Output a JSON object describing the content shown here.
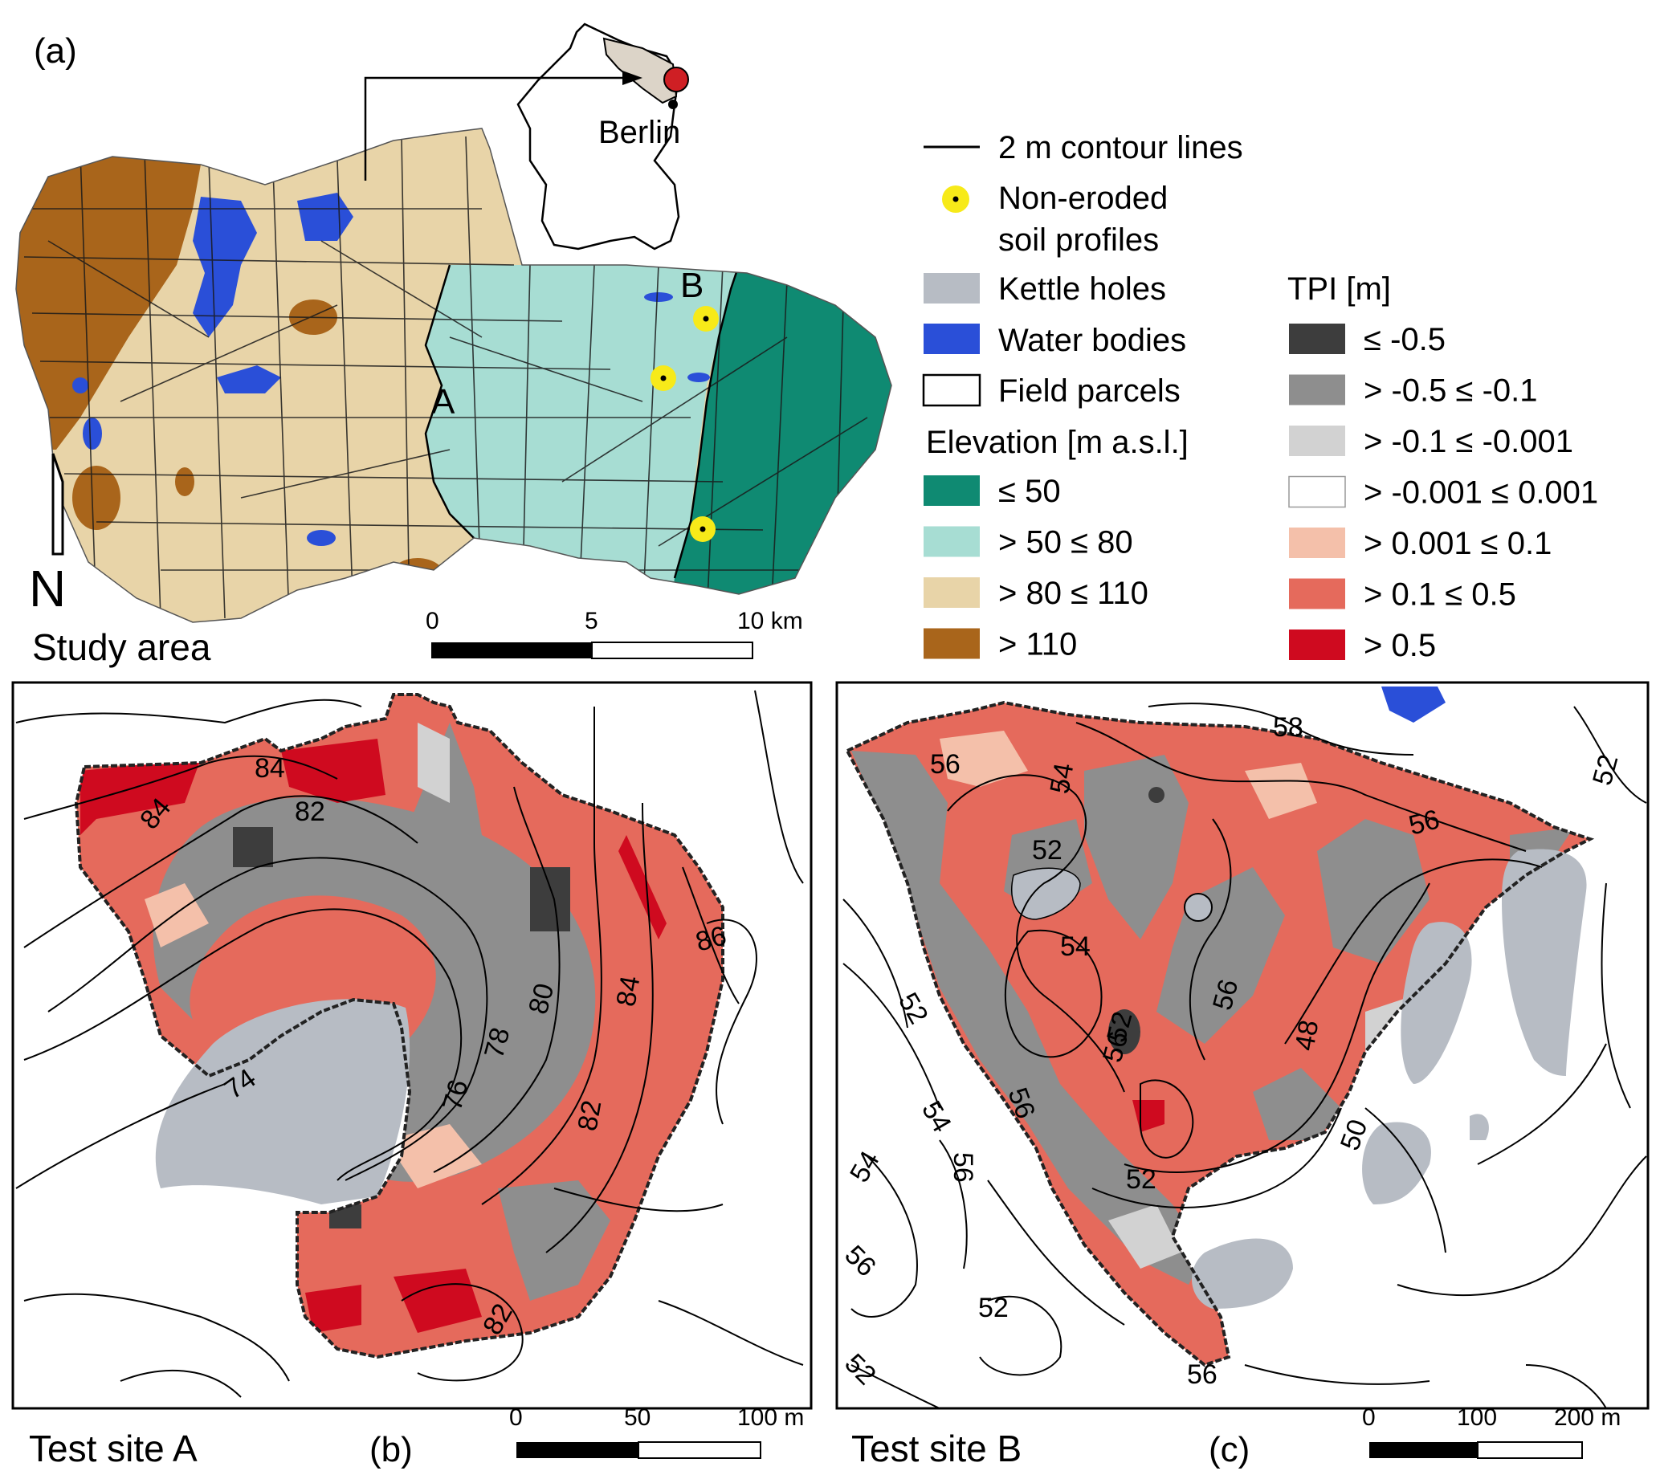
{
  "panel_a": {
    "tag": "(a)",
    "title": "Study area",
    "site_a_label": "A",
    "site_b_label": "B",
    "inset_city": "Berlin",
    "north_label": "N",
    "scale": {
      "ticks": [
        "0",
        "5",
        "10 km"
      ]
    }
  },
  "legend": {
    "contours": "2 m contour lines",
    "profiles_line1": "Non-eroded",
    "profiles_line2": "soil profiles",
    "kettle": "Kettle holes",
    "water": "Water bodies",
    "parcels": "Field parcels",
    "elevation_title": "Elevation [m a.s.l.]",
    "elevation_classes": [
      {
        "label": "≤ 50",
        "color": "#0f8a72"
      },
      {
        "label": "> 50 ≤ 80",
        "color": "#a7ddd3"
      },
      {
        "label": "> 80 ≤ 110",
        "color": "#e8d4a8"
      },
      {
        "label": "> 110",
        "color": "#a9651b"
      }
    ],
    "tpi_title": "TPI [m]",
    "tpi_classes": [
      {
        "label": "≤ -0.5",
        "color": "#3d3d3d"
      },
      {
        "label": "> -0.5 ≤ -0.1",
        "color": "#8e8e8e"
      },
      {
        "label": "> -0.1 ≤ -0.001",
        "color": "#d2d2d2"
      },
      {
        "label": "> -0.001 ≤ 0.001",
        "color": "#ffffff"
      },
      {
        "label": "> 0.001 ≤ 0.1",
        "color": "#f4c0aa"
      },
      {
        "label": "> 0.1 ≤ 0.5",
        "color": "#e56a5c"
      },
      {
        "label": "> 0.5",
        "color": "#cf0a1f"
      }
    ],
    "colors": {
      "kettle": "#b7bcc4",
      "water": "#2a4fd8",
      "profile": "#f7ea19"
    }
  },
  "panel_b": {
    "title": "Test site A",
    "tag": "(b)",
    "scale": {
      "ticks": [
        "0",
        "50",
        "100 m"
      ]
    },
    "contour_labels": [
      "84",
      "84",
      "82",
      "86",
      "80",
      "78",
      "76",
      "74",
      "84",
      "82",
      "82"
    ]
  },
  "panel_c": {
    "title": "Test site B",
    "tag": "(c)",
    "scale": {
      "ticks": [
        "0",
        "100",
        "200 m"
      ]
    },
    "contour_labels": [
      "58",
      "56",
      "54",
      "52",
      "52",
      "56",
      "54",
      "56",
      "52",
      "56",
      "48",
      "50",
      "52",
      "52",
      "54",
      "56",
      "54",
      "56",
      "52",
      "52",
      "56",
      "56"
    ]
  }
}
